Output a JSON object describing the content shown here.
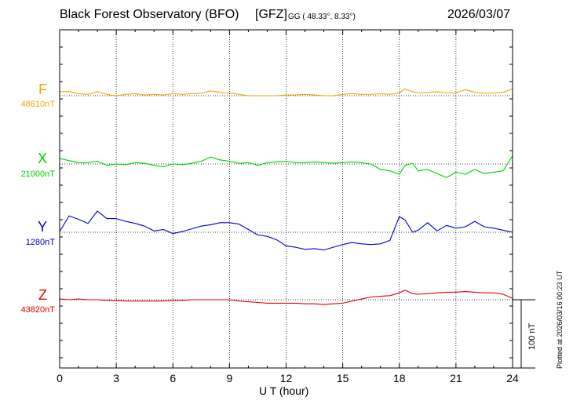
{
  "header": {
    "title": "Black Forest Observatory (BFO)",
    "institute": "[GFZ]",
    "coords": "GG ( 48.33°,   8.33°)",
    "date": "2026/03/07"
  },
  "footer_note": "Plotted at 2026/03/16 00:23 UT",
  "scale_label": "100 nT",
  "colors": {
    "F": "#f0a800",
    "X": "#00d000",
    "Y": "#0000c8",
    "Z": "#e00000"
  },
  "chart_data": {
    "type": "line",
    "title": "Black Forest Observatory (BFO)",
    "xlabel": "U T (hour)",
    "ylabel": "",
    "xlim": [
      0,
      24
    ],
    "xticks": [
      "0",
      "3",
      "6",
      "9",
      "12",
      "15",
      "18",
      "21",
      "24"
    ],
    "grid": true,
    "scale_bar_nT": 100,
    "series": [
      {
        "name": "F",
        "baseline_label": "48610nT",
        "baseline_nT": 48610,
        "x": [
          0,
          0.5,
          1,
          1.5,
          2,
          2.5,
          3,
          3.5,
          4,
          4.5,
          5,
          5.5,
          6,
          6.5,
          7,
          7.5,
          8,
          8.5,
          9,
          9.5,
          10,
          10.5,
          11,
          11.5,
          12,
          12.5,
          13,
          13.5,
          14,
          14.5,
          15,
          15.5,
          16,
          16.5,
          17,
          17.5,
          18,
          18.3,
          18.7,
          19,
          19.5,
          20,
          20.5,
          21,
          21.5,
          22,
          22.5,
          23,
          23.5,
          24
        ],
        "y": [
          48616,
          48616,
          48613,
          48612,
          48616,
          48612,
          48610,
          48612,
          48613,
          48611,
          48612,
          48611,
          48613,
          48612,
          48613,
          48614,
          48617,
          48615,
          48614,
          48612,
          48610,
          48610,
          48610,
          48610,
          48611,
          48611,
          48612,
          48611,
          48610,
          48610,
          48612,
          48613,
          48612,
          48612,
          48613,
          48612,
          48614,
          48620,
          48616,
          48614,
          48615,
          48616,
          48614,
          48614,
          48619,
          48615,
          48614,
          48614,
          48615,
          48620
        ]
      },
      {
        "name": "X",
        "baseline_label": "21000nT",
        "baseline_nT": 21000,
        "x": [
          0,
          0.5,
          1,
          1.5,
          2,
          2.5,
          3,
          3.5,
          4,
          4.5,
          5,
          5.5,
          6,
          6.5,
          7,
          7.5,
          8,
          8.5,
          9,
          9.5,
          10,
          10.5,
          11,
          11.5,
          12,
          12.5,
          13,
          13.5,
          14,
          14.5,
          15,
          15.5,
          16,
          16.5,
          17,
          17.5,
          18,
          18.3,
          18.7,
          19,
          19.5,
          20,
          20.5,
          21,
          21.5,
          22,
          22.5,
          23,
          23.5,
          24
        ],
        "y": [
          21008,
          21005,
          21002,
          21002,
          21004,
          20998,
          21000,
          20999,
          21002,
          21001,
          20998,
          20996,
          21000,
          20999,
          21001,
          21004,
          21010,
          21006,
          21004,
          21001,
          21002,
          20998,
          21002,
          21003,
          21004,
          21002,
          21002,
          21003,
          21002,
          21001,
          21002,
          21003,
          21002,
          21000,
          20992,
          20990,
          20985,
          20998,
          21001,
          20990,
          20992,
          20986,
          20980,
          20988,
          20985,
          20992,
          20986,
          20988,
          20990,
          21012
        ]
      },
      {
        "name": "Y",
        "baseline_label": "1280nT",
        "baseline_nT": 1280,
        "x": [
          0,
          0.5,
          1,
          1.5,
          2,
          2.5,
          3,
          3.5,
          4,
          4.5,
          5,
          5.5,
          6,
          6.5,
          7,
          7.5,
          8,
          8.5,
          9,
          9.5,
          10,
          10.5,
          11,
          11.5,
          12,
          12.5,
          13,
          13.5,
          14,
          14.5,
          15,
          15.5,
          16,
          16.5,
          17,
          17.5,
          18,
          18.3,
          18.7,
          19,
          19.5,
          20,
          20.5,
          21,
          21.5,
          22,
          22.5,
          23,
          23.5,
          24
        ],
        "y": [
          1281,
          1304,
          1299,
          1293,
          1311,
          1300,
          1300,
          1296,
          1293,
          1289,
          1282,
          1284,
          1278,
          1281,
          1285,
          1289,
          1291,
          1294,
          1294,
          1292,
          1284,
          1276,
          1274,
          1269,
          1260,
          1258,
          1255,
          1256,
          1254,
          1258,
          1262,
          1265,
          1263,
          1262,
          1263,
          1268,
          1303,
          1298,
          1280,
          1283,
          1294,
          1282,
          1290,
          1286,
          1288,
          1296,
          1288,
          1286,
          1283,
          1280
        ]
      },
      {
        "name": "Z",
        "baseline_label": "43820nT",
        "baseline_nT": 43820,
        "x": [
          0,
          0.5,
          1,
          1.5,
          2,
          2.5,
          3,
          3.5,
          4,
          4.5,
          5,
          5.5,
          6,
          6.5,
          7,
          7.5,
          8,
          8.5,
          9,
          9.5,
          10,
          10.5,
          11,
          11.5,
          12,
          12.5,
          13,
          13.5,
          14,
          14.5,
          15,
          15.5,
          16,
          16.5,
          17,
          17.5,
          18,
          18.3,
          18.7,
          19,
          19.5,
          20,
          20.5,
          21,
          21.5,
          22,
          22.5,
          23,
          23.5,
          24
        ],
        "y": [
          43821,
          43820,
          43821,
          43820,
          43820,
          43819,
          43819,
          43818,
          43818,
          43818,
          43818,
          43818,
          43819,
          43819,
          43820,
          43820,
          43820,
          43820,
          43820,
          43818,
          43817,
          43816,
          43815,
          43815,
          43815,
          43815,
          43814,
          43814,
          43813,
          43814,
          43815,
          43818,
          43821,
          43824,
          43825,
          43826,
          43830,
          43834,
          43829,
          43828,
          43829,
          43830,
          43831,
          43831,
          43832,
          43831,
          43830,
          43830,
          43828,
          43822
        ]
      }
    ]
  }
}
